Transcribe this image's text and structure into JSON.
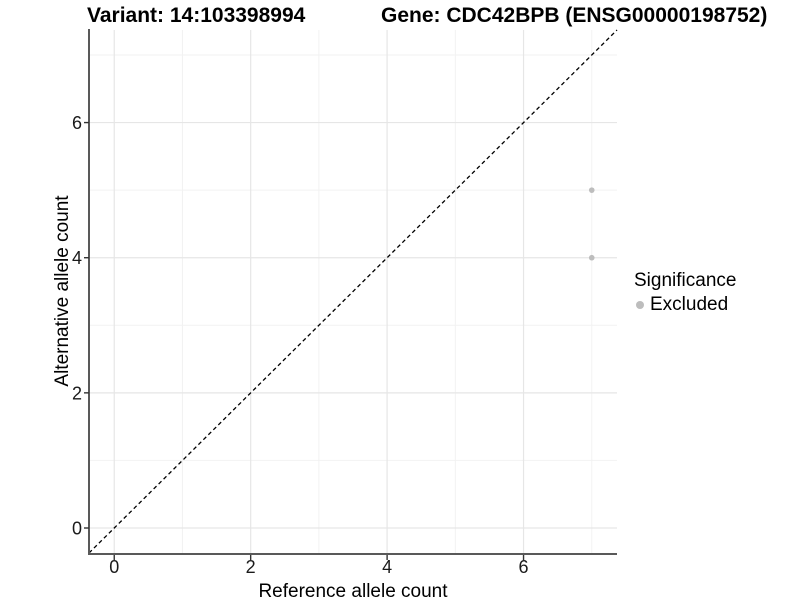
{
  "titles": {
    "variant": "Variant: 14:103398994",
    "gene": "Gene: CDC42BPB (ENSG00000198752)"
  },
  "axes": {
    "x_label": "Reference allele count",
    "y_label": "Alternative allele count"
  },
  "legend": {
    "title": "Significance",
    "items": [
      {
        "label": "Excluded",
        "color": "#bdbdbd"
      }
    ]
  },
  "colors": {
    "background": "#ffffff",
    "point": "#bdbdbd",
    "grid_major": "#e6e6e6",
    "grid_minor": "#f2f2f2",
    "axis_line": "#595959",
    "tick_mark": "#333333",
    "tick_label": "#1a1a1a",
    "identity_line": "#000000"
  },
  "chart_data": {
    "type": "scatter",
    "title": "Variant: 14:103398994 — Gene: CDC42BPB (ENSG00000198752)",
    "xlabel": "Reference allele count",
    "ylabel": "Alternative allele count",
    "xlim": [
      -0.37,
      7.37
    ],
    "ylim": [
      -0.37,
      7.37
    ],
    "x_ticks": [
      0,
      2,
      4,
      6
    ],
    "y_ticks": [
      0,
      2,
      4,
      6
    ],
    "x_minor_ticks": [
      1,
      3,
      5,
      7
    ],
    "y_minor_ticks": [
      1,
      3,
      5,
      7
    ],
    "grid": true,
    "legend_position": "right",
    "series": [
      {
        "name": "Excluded",
        "color": "#bdbdbd",
        "points": [
          [
            7,
            5
          ],
          [
            7,
            4
          ]
        ]
      }
    ],
    "reference_line": {
      "type": "identity",
      "slope": 1,
      "intercept": 0,
      "style": "dashed",
      "color": "#000000"
    }
  }
}
